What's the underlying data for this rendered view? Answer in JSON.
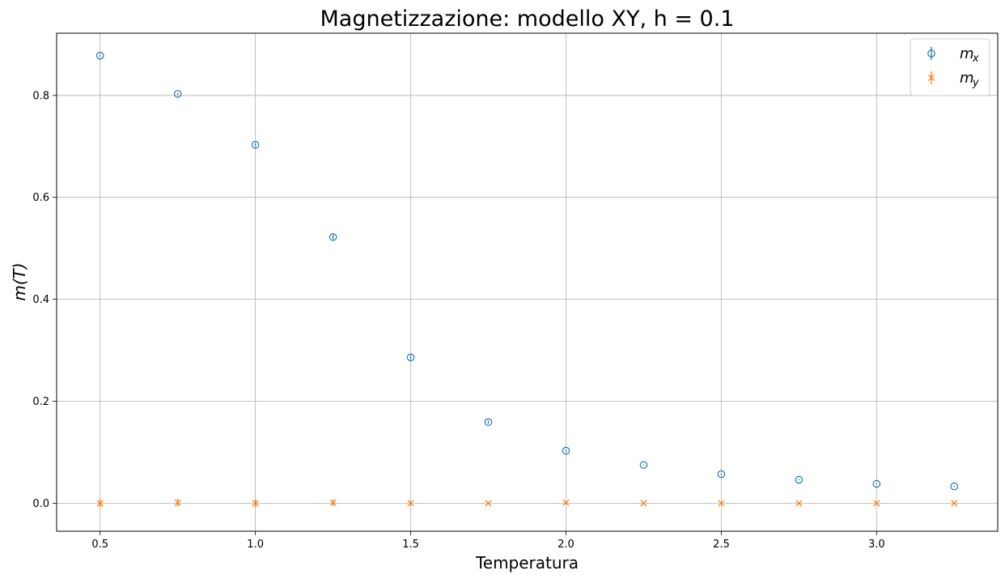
{
  "chart_data": {
    "type": "scatter",
    "title": "Magnetizzazione: modello XY, h = 0.1",
    "xlabel": "Temperatura",
    "ylabel": "m(T)",
    "xlim": [
      0.36,
      3.39
    ],
    "ylim": [
      -0.055,
      0.922
    ],
    "xticks": [
      0.5,
      1.0,
      1.5,
      2.0,
      2.5,
      3.0
    ],
    "xtick_labels": [
      "0.5",
      "1.0",
      "1.5",
      "2.0",
      "2.5",
      "3.0"
    ],
    "yticks": [
      0.0,
      0.2,
      0.4,
      0.6,
      0.8
    ],
    "ytick_labels": [
      "0.0",
      "0.2",
      "0.4",
      "0.6",
      "0.8"
    ],
    "grid": true,
    "legend_position": "top-right",
    "x": [
      0.5,
      0.75,
      1.0,
      1.25,
      1.5,
      1.75,
      2.0,
      2.25,
      2.5,
      2.75,
      3.0,
      3.25
    ],
    "series": [
      {
        "name": "m",
        "subscript": "x",
        "marker": "circle-open",
        "color": "#1f77b4",
        "values": [
          0.878,
          0.803,
          0.703,
          0.522,
          0.286,
          0.159,
          0.103,
          0.075,
          0.057,
          0.046,
          0.038,
          0.033
        ],
        "errors": [
          0.002,
          0.002,
          0.003,
          0.005,
          0.004,
          0.003,
          0.002,
          0.001,
          0.001,
          0.001,
          0.001,
          0.001
        ]
      },
      {
        "name": "m",
        "subscript": "y",
        "marker": "x",
        "color": "#ff7f0e",
        "values": [
          0.0,
          0.001,
          0.0,
          0.001,
          0.0,
          0.0,
          0.001,
          0.0,
          0.0,
          0.0,
          0.0,
          0.0
        ],
        "errors": [
          0.008,
          0.008,
          0.008,
          0.007,
          0.003,
          0.002,
          0.002,
          0.001,
          0.001,
          0.001,
          0.001,
          0.001
        ]
      }
    ]
  }
}
